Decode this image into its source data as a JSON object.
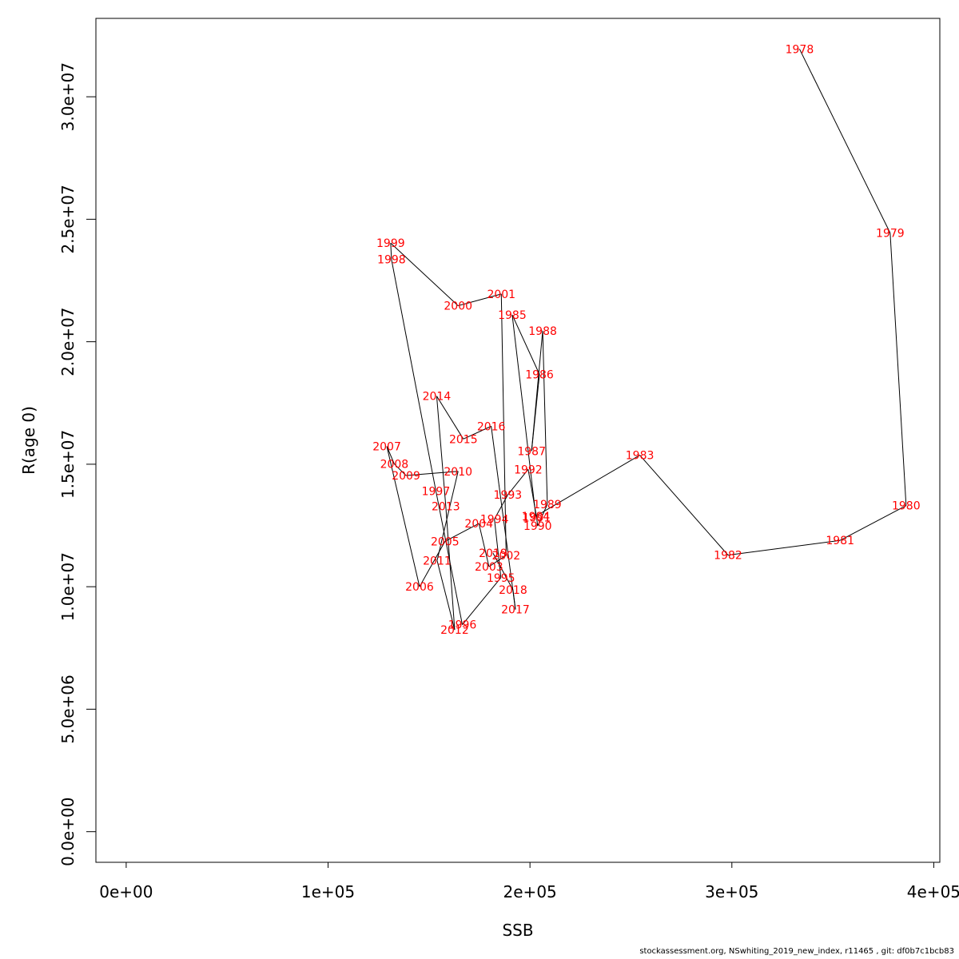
{
  "chart_data": {
    "type": "line",
    "title": "",
    "xlabel": "SSB",
    "ylabel": "R(age 0)",
    "xlim": [
      -15000,
      403000
    ],
    "ylim": [
      -1250000,
      33200000
    ],
    "xticks": [
      0,
      100000,
      200000,
      300000,
      400000
    ],
    "xtick_labels": [
      "0e+00",
      "1e+05",
      "2e+05",
      "3e+05",
      "4e+05"
    ],
    "yticks": [
      0,
      5000000,
      10000000,
      15000000,
      20000000,
      25000000,
      30000000
    ],
    "ytick_labels": [
      "0.0e+00",
      "5.0e+06",
      "1.0e+07",
      "1.5e+07",
      "2.0e+07",
      "2.5e+07",
      "3.0e+07"
    ],
    "grid": false,
    "line_color": "#000000",
    "label_color": "#ff0000",
    "series": [
      {
        "points": [
          {
            "label": "1978",
            "x": 333500,
            "y": 31950000
          },
          {
            "label": "1979",
            "x": 378400,
            "y": 24440000
          },
          {
            "label": "1980",
            "x": 386300,
            "y": 13310000
          },
          {
            "label": "1981",
            "x": 353600,
            "y": 11890000
          },
          {
            "label": "1982",
            "x": 298100,
            "y": 11290000
          },
          {
            "label": "1983",
            "x": 254400,
            "y": 15370000
          },
          {
            "label": "1984",
            "x": 202900,
            "y": 12880000
          },
          {
            "label": "1985",
            "x": 191200,
            "y": 21100000
          },
          {
            "label": "1986",
            "x": 204700,
            "y": 18670000
          },
          {
            "label": "1987",
            "x": 200800,
            "y": 15540000
          },
          {
            "label": "1988",
            "x": 206300,
            "y": 20450000
          },
          {
            "label": "1989",
            "x": 208600,
            "y": 13360000
          },
          {
            "label": "1990",
            "x": 203800,
            "y": 12480000
          },
          {
            "label": "1991",
            "x": 203300,
            "y": 12830000
          },
          {
            "label": "1992",
            "x": 199100,
            "y": 14790000
          },
          {
            "label": "1993",
            "x": 189000,
            "y": 13750000
          },
          {
            "label": "1994",
            "x": 182400,
            "y": 12760000
          },
          {
            "label": "1995",
            "x": 185600,
            "y": 10370000
          },
          {
            "label": "1996",
            "x": 166500,
            "y": 8450000
          },
          {
            "label": "1997",
            "x": 153400,
            "y": 13910000
          },
          {
            "label": "1998",
            "x": 131400,
            "y": 23360000
          },
          {
            "label": "1999",
            "x": 131000,
            "y": 24030000
          },
          {
            "label": "2000",
            "x": 164400,
            "y": 21470000
          },
          {
            "label": "2001",
            "x": 185800,
            "y": 21950000
          },
          {
            "label": "2002",
            "x": 188200,
            "y": 11280000
          },
          {
            "label": "2003",
            "x": 179700,
            "y": 10820000
          },
          {
            "label": "2004",
            "x": 174700,
            "y": 12580000
          },
          {
            "label": "2005",
            "x": 157900,
            "y": 11850000
          },
          {
            "label": "2006",
            "x": 145300,
            "y": 10000000
          },
          {
            "label": "2007",
            "x": 129100,
            "y": 15730000
          },
          {
            "label": "2008",
            "x": 132800,
            "y": 15010000
          },
          {
            "label": "2009",
            "x": 138600,
            "y": 14540000
          },
          {
            "label": "2010",
            "x": 164400,
            "y": 14710000
          },
          {
            "label": "2011",
            "x": 154000,
            "y": 11070000
          },
          {
            "label": "2012",
            "x": 162700,
            "y": 8240000
          },
          {
            "label": "2013",
            "x": 158300,
            "y": 13290000
          },
          {
            "label": "2014",
            "x": 153800,
            "y": 17780000
          },
          {
            "label": "2015",
            "x": 167000,
            "y": 16030000
          },
          {
            "label": "2016",
            "x": 180800,
            "y": 16550000
          },
          {
            "label": "2017",
            "x": 192800,
            "y": 9070000
          },
          {
            "label": "2018",
            "x": 191600,
            "y": 9870000
          },
          {
            "label": "2019",
            "x": 181700,
            "y": 11370000
          }
        ]
      }
    ]
  },
  "footer": "stockassessment.org, NSwhiting_2019_new_index, r11465 , git: df0b7c1bcb83"
}
